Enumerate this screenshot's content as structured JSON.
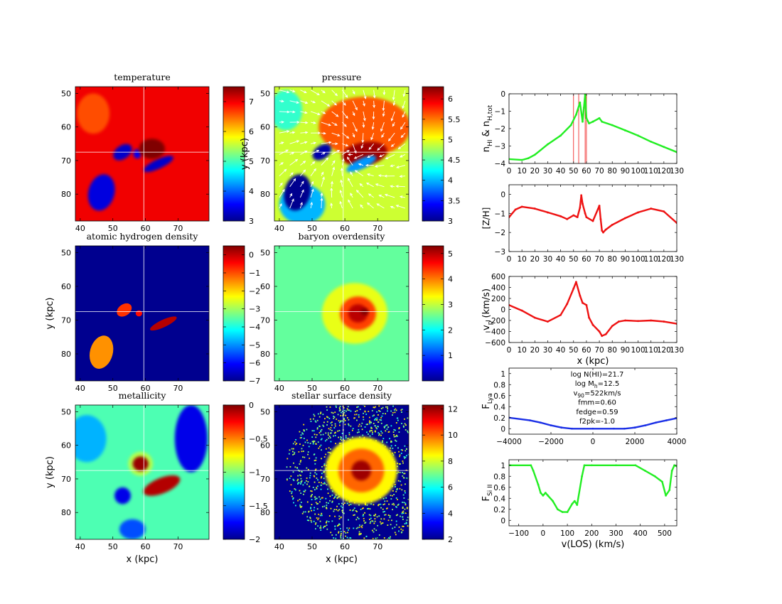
{
  "colors": {
    "jet_scale": [
      "#00008f",
      "#0000ff",
      "#0080ff",
      "#00ffff",
      "#80ff80",
      "#ffff00",
      "#ff8000",
      "#ff0000",
      "#800000"
    ],
    "green_line": "#22ee22",
    "red_line": "#ee1111",
    "blue_line": "#1a2fe6",
    "crosshair": "#ffffff",
    "arrow": "#ffffff"
  },
  "axis_labels": {
    "x_kpc": "x (kpc)",
    "y_kpc": "y (kpc)",
    "x_los": "v(LOS) (km/s)"
  },
  "chart_data": [
    {
      "id": "temperature",
      "type": "heatmap",
      "title": "temperature",
      "xlim": [
        38.5,
        79.5
      ],
      "ylim": [
        48,
        88
      ],
      "xticks": [
        40,
        50,
        60,
        70
      ],
      "yticks": [
        50,
        60,
        70,
        80
      ],
      "xlabel": "",
      "ylabel": "",
      "colorbar": {
        "min": 3,
        "max": 7.5,
        "ticks": [
          3,
          4,
          5,
          6,
          7
        ]
      },
      "background_value": 7.0,
      "crosshair": [
        59.5,
        67.5
      ],
      "regions": [
        {
          "shape": "ellipse",
          "cx": 46.5,
          "cy": 79.5,
          "rx": 4,
          "ry": 5.5,
          "rot": 15,
          "value": 3.4
        },
        {
          "shape": "ellipse",
          "cx": 53,
          "cy": 67.5,
          "rx": 3.2,
          "ry": 2,
          "rot": -35,
          "value": 3.3
        },
        {
          "shape": "ellipse",
          "cx": 57.5,
          "cy": 68,
          "rx": 1.2,
          "ry": 1.4,
          "rot": 0,
          "value": 3.5
        },
        {
          "shape": "ellipse",
          "cx": 64,
          "cy": 71,
          "rx": 5,
          "ry": 1.4,
          "rot": -25,
          "value": 3.3
        },
        {
          "shape": "ellipse",
          "cx": 62,
          "cy": 66.5,
          "rx": 4,
          "ry": 3,
          "rot": 0,
          "value": 7.5
        },
        {
          "shape": "ellipse",
          "cx": 44,
          "cy": 56,
          "rx": 5,
          "ry": 6,
          "rot": 0,
          "value": 6.6
        }
      ]
    },
    {
      "id": "pressure",
      "type": "heatmap",
      "title": "pressure",
      "xlim": [
        38.5,
        79.5
      ],
      "ylim": [
        48,
        88
      ],
      "xticks": [
        40,
        50,
        60,
        70
      ],
      "yticks": [
        50,
        60,
        70,
        80
      ],
      "xlabel": "",
      "ylabel": "y (kpc)",
      "colorbar": {
        "min": 3,
        "max": 6.3,
        "ticks": [
          3,
          3.5,
          4,
          4.5,
          5,
          5.5,
          6
        ]
      },
      "background_value": 4.9,
      "crosshair": [
        59.5,
        67.5
      ],
      "quiver": true,
      "regions": [
        {
          "shape": "ellipse",
          "cx": 66,
          "cy": 60,
          "rx": 14,
          "ry": 9,
          "rot": 0,
          "value": 5.6
        },
        {
          "shape": "ellipse",
          "cx": 66,
          "cy": 68,
          "rx": 7,
          "ry": 3.5,
          "rot": -10,
          "value": 6.2
        },
        {
          "shape": "ellipse",
          "cx": 42,
          "cy": 55,
          "rx": 5,
          "ry": 6,
          "rot": 0,
          "value": 4.4
        },
        {
          "shape": "ellipse",
          "cx": 47,
          "cy": 83,
          "rx": 7,
          "ry": 6,
          "rot": 0,
          "value": 4.0
        },
        {
          "shape": "ellipse",
          "cx": 45.5,
          "cy": 79.5,
          "rx": 4,
          "ry": 5.5,
          "rot": 15,
          "value": 3.0
        },
        {
          "shape": "ellipse",
          "cx": 53,
          "cy": 67.5,
          "rx": 3.2,
          "ry": 2,
          "rot": -35,
          "value": 3.1
        },
        {
          "shape": "ellipse",
          "cx": 65,
          "cy": 71,
          "rx": 5,
          "ry": 1.5,
          "rot": -25,
          "value": 3.9
        }
      ]
    },
    {
      "id": "atomic-hydrogen-density",
      "type": "heatmap",
      "title": "atomic hydrogen density",
      "xlim": [
        38.5,
        79.5
      ],
      "ylim": [
        48,
        88
      ],
      "xticks": [
        40,
        50,
        60,
        70
      ],
      "yticks": [
        50,
        60,
        70,
        80
      ],
      "xlabel": "",
      "ylabel": "y (kpc)",
      "colorbar": {
        "min": -7,
        "max": 0.5,
        "ticks": [
          -7,
          -6,
          -5,
          -4,
          -3,
          -2,
          -1,
          0
        ]
      },
      "background_value": -7,
      "crosshair": [
        59.5,
        67.5
      ],
      "regions": [
        {
          "shape": "ellipse",
          "cx": 46.5,
          "cy": 79.5,
          "rx": 3.5,
          "ry": 5,
          "rot": 15,
          "value": -1.5
        },
        {
          "shape": "ellipse",
          "cx": 53.5,
          "cy": 67,
          "rx": 2.5,
          "ry": 1.7,
          "rot": -35,
          "value": -0.8
        },
        {
          "shape": "ellipse",
          "cx": 58,
          "cy": 68,
          "rx": 1,
          "ry": 0.9,
          "rot": 0,
          "value": -0.5
        },
        {
          "shape": "ellipse",
          "cx": 65.5,
          "cy": 71,
          "rx": 4.5,
          "ry": 1.1,
          "rot": -25,
          "value": 0.1
        }
      ]
    },
    {
      "id": "baryon-overdensity",
      "type": "heatmap",
      "title": "baryon overdensity",
      "xlim": [
        38.5,
        79.5
      ],
      "ylim": [
        48,
        88
      ],
      "xticks": [
        40,
        50,
        60,
        70
      ],
      "yticks": [
        50,
        60,
        70,
        80
      ],
      "xlabel": "",
      "ylabel": "",
      "colorbar": {
        "min": 0,
        "max": 5.3,
        "ticks": [
          1,
          2,
          3,
          4,
          5
        ]
      },
      "background_value": 2.5,
      "crosshair": [
        59.5,
        67.5
      ],
      "regions": [
        {
          "shape": "ellipse",
          "cx": 63,
          "cy": 68,
          "rx": 10,
          "ry": 9,
          "rot": 0,
          "value": 3.2
        },
        {
          "shape": "ellipse",
          "cx": 64,
          "cy": 68,
          "rx": 5.5,
          "ry": 5,
          "rot": 0,
          "value": 4.3
        },
        {
          "shape": "ellipse",
          "cx": 64,
          "cy": 68,
          "rx": 3,
          "ry": 2.7,
          "rot": 0,
          "value": 5.0
        },
        {
          "shape": "ellipse",
          "cx": 66,
          "cy": 67.5,
          "rx": 1.2,
          "ry": 1,
          "rot": 0,
          "value": 5.3
        }
      ]
    },
    {
      "id": "metallicity",
      "type": "heatmap",
      "title": "metallicity",
      "xlim": [
        38.5,
        79.5
      ],
      "ylim": [
        48,
        88
      ],
      "xticks": [
        40,
        50,
        60,
        70
      ],
      "yticks": [
        50,
        60,
        70,
        80
      ],
      "xlabel": "x (kpc)",
      "ylabel": "y (kpc)",
      "colorbar": {
        "min": -2,
        "max": 0,
        "ticks": [
          -2,
          -1.5,
          -1,
          -0.5,
          0
        ]
      },
      "background_value": -1.1,
      "crosshair": [
        59.5,
        67.5
      ],
      "regions": [
        {
          "shape": "ellipse",
          "cx": 42,
          "cy": 58,
          "rx": 6,
          "ry": 7,
          "rot": 0,
          "value": -1.4
        },
        {
          "shape": "ellipse",
          "cx": 74,
          "cy": 58,
          "rx": 5,
          "ry": 10,
          "rot": 0,
          "value": -1.8
        },
        {
          "shape": "ellipse",
          "cx": 53,
          "cy": 75,
          "rx": 2.5,
          "ry": 2.5,
          "rot": 0,
          "value": -1.8
        },
        {
          "shape": "ellipse",
          "cx": 56,
          "cy": 85,
          "rx": 4,
          "ry": 3,
          "rot": 0,
          "value": -1.6
        },
        {
          "shape": "ellipse",
          "cx": 58.5,
          "cy": 65.5,
          "rx": 3.8,
          "ry": 3.6,
          "rot": 0,
          "value": -0.9
        },
        {
          "shape": "ellipse",
          "cx": 58.5,
          "cy": 65.5,
          "rx": 2.4,
          "ry": 2.2,
          "rot": 0,
          "value": -0.05
        },
        {
          "shape": "ellipse",
          "cx": 65,
          "cy": 72,
          "rx": 6,
          "ry": 2.3,
          "rot": -22,
          "value": -0.1
        }
      ]
    },
    {
      "id": "stellar-surface-density",
      "type": "heatmap",
      "title": "stellar surface density",
      "xlim": [
        38.5,
        79.5
      ],
      "ylim": [
        48,
        88
      ],
      "xticks": [
        40,
        50,
        60,
        70
      ],
      "yticks": [
        50,
        60,
        70,
        80
      ],
      "xlabel": "x (kpc)",
      "ylabel": "",
      "colorbar": {
        "min": 2,
        "max": 12.3,
        "ticks": [
          2,
          4,
          6,
          8,
          10,
          12
        ]
      },
      "background_value": 2,
      "crosshair": [
        59.5,
        67.5
      ],
      "scatter_field": true,
      "regions": [
        {
          "shape": "ellipse",
          "cx": 65,
          "cy": 67.5,
          "rx": 11,
          "ry": 10,
          "rot": 0,
          "value": 8.5
        },
        {
          "shape": "ellipse",
          "cx": 65,
          "cy": 67.5,
          "rx": 7,
          "ry": 6.5,
          "rot": 0,
          "value": 10
        },
        {
          "shape": "ellipse",
          "cx": 65,
          "cy": 67.5,
          "rx": 3,
          "ry": 3,
          "rot": 0,
          "value": 12
        }
      ]
    },
    {
      "id": "nhi-profile",
      "type": "line",
      "ylabel_main": "n",
      "ylabel_sub1": "HI",
      "ylabel_mid": " & n",
      "ylabel_sub2": "H,tot",
      "xlim": [
        0,
        130
      ],
      "ylim": [
        -4,
        0
      ],
      "xticks": [
        0,
        10,
        20,
        30,
        40,
        50,
        60,
        70,
        80,
        90,
        100,
        110,
        120,
        130
      ],
      "yticks": [
        -4,
        -3,
        -2,
        -1,
        0
      ],
      "series": [
        {
          "name": "n_H,tot",
          "color": "green",
          "x": [
            0,
            10,
            15,
            20,
            30,
            40,
            48,
            52,
            55,
            57,
            58,
            59,
            60,
            62,
            65,
            70,
            72,
            80,
            90,
            100,
            110,
            120,
            130
          ],
          "y": [
            -3.75,
            -3.8,
            -3.7,
            -3.5,
            -2.9,
            -2.4,
            -1.8,
            -1.2,
            -0.5,
            -1.6,
            -0.8,
            -0.05,
            -1.4,
            -1.7,
            -1.6,
            -1.4,
            -1.6,
            -1.8,
            -2.1,
            -2.4,
            -2.75,
            -3.05,
            -3.35
          ]
        }
      ],
      "vlines": [
        50,
        54,
        59,
        60
      ]
    },
    {
      "id": "metallicity-profile",
      "type": "line",
      "ylabel": "[Z/H]",
      "xlim": [
        0,
        130
      ],
      "ylim": [
        -3,
        0.5
      ],
      "xticks": [
        0,
        10,
        20,
        30,
        40,
        50,
        60,
        70,
        80,
        90,
        100,
        110,
        120,
        130
      ],
      "yticks": [
        -3,
        -2,
        -1,
        0
      ],
      "series": [
        {
          "name": "[Z/H]",
          "color": "red",
          "x": [
            0,
            5,
            10,
            20,
            30,
            40,
            45,
            50,
            53,
            55,
            56,
            57,
            59,
            60,
            65,
            70,
            71,
            72,
            73,
            75,
            80,
            90,
            100,
            110,
            120,
            130
          ],
          "y": [
            -1.2,
            -0.8,
            -0.65,
            -0.75,
            -0.95,
            -1.15,
            -1.3,
            -1.1,
            -1.2,
            -0.7,
            -0.05,
            -0.5,
            -1.0,
            -1.2,
            -1.4,
            -0.6,
            -1.3,
            -1.9,
            -2.0,
            -1.85,
            -1.6,
            -1.25,
            -0.95,
            -0.75,
            -0.9,
            -1.5
          ]
        }
      ]
    },
    {
      "id": "velocity-profile",
      "type": "line",
      "ylabel_main": "v",
      "ylabel_sub1": "p",
      "ylabel_mid": " (km/s)",
      "xlabel": "x (kpc)",
      "xlim": [
        0,
        130
      ],
      "ylim": [
        -600,
        600
      ],
      "xticks": [
        0,
        10,
        20,
        30,
        40,
        50,
        60,
        70,
        80,
        90,
        100,
        110,
        120,
        130
      ],
      "yticks": [
        -600,
        -400,
        -200,
        0,
        200,
        400,
        600
      ],
      "series": [
        {
          "name": "v_p",
          "color": "red",
          "x": [
            0,
            10,
            20,
            30,
            40,
            45,
            50,
            52,
            55,
            57,
            60,
            62,
            65,
            70,
            72,
            75,
            80,
            85,
            90,
            100,
            110,
            120,
            130
          ],
          "y": [
            80,
            -20,
            -150,
            -220,
            -100,
            100,
            380,
            500,
            250,
            120,
            80,
            -150,
            -280,
            -400,
            -480,
            -450,
            -300,
            -220,
            -200,
            -210,
            -200,
            -220,
            -260
          ]
        }
      ]
    },
    {
      "id": "lya-flux",
      "type": "line",
      "ylabel_main": "F",
      "ylabel_sub1": "Lya",
      "xlim": [
        -4000,
        4000
      ],
      "ylim": [
        -0.1,
        1.1
      ],
      "xticks": [
        -4000,
        -2000,
        0,
        2000,
        4000
      ],
      "yticks": [
        0,
        0.2,
        0.4,
        0.6,
        0.8,
        1
      ],
      "annotations": [
        "log N(HI)=21.7",
        "log M_h=12.5",
        "v_90=522km/s",
        "fmm=0.60",
        "fedge=0.59",
        "f2pk=-1.0"
      ],
      "series": [
        {
          "name": "F_Lya",
          "color": "blue",
          "x": [
            -4000,
            -3000,
            -2500,
            -2000,
            -1500,
            -1000,
            0,
            1000,
            1500,
            2000,
            2500,
            3000,
            3500,
            4000
          ],
          "y": [
            0.2,
            0.15,
            0.11,
            0.06,
            0.02,
            0.0,
            0.0,
            0.0,
            0.0,
            0.02,
            0.06,
            0.11,
            0.15,
            0.19
          ]
        }
      ]
    },
    {
      "id": "siii-flux",
      "type": "line",
      "ylabel_main": "F",
      "ylabel_sub1": "Si II",
      "xlabel": "v(LOS) (km/s)",
      "xlim": [
        -140,
        550
      ],
      "ylim": [
        -0.1,
        1.1
      ],
      "xticks": [
        -100,
        0,
        100,
        200,
        300,
        400,
        500
      ],
      "yticks": [
        0,
        0.2,
        0.4,
        0.6,
        0.8,
        1
      ],
      "series": [
        {
          "name": "F_SiII",
          "color": "green",
          "x": [
            -140,
            -50,
            -40,
            -20,
            -10,
            0,
            10,
            20,
            40,
            60,
            80,
            100,
            120,
            130,
            140,
            160,
            170,
            200,
            300,
            380,
            420,
            460,
            490,
            505,
            520,
            530,
            540,
            550
          ],
          "y": [
            1.0,
            1.0,
            0.9,
            0.65,
            0.5,
            0.45,
            0.5,
            0.45,
            0.35,
            0.2,
            0.15,
            0.15,
            0.3,
            0.35,
            0.28,
            0.8,
            1.0,
            1.0,
            1.0,
            1.0,
            0.9,
            0.8,
            0.7,
            0.45,
            0.55,
            0.9,
            1.0,
            0.98
          ]
        }
      ]
    }
  ]
}
